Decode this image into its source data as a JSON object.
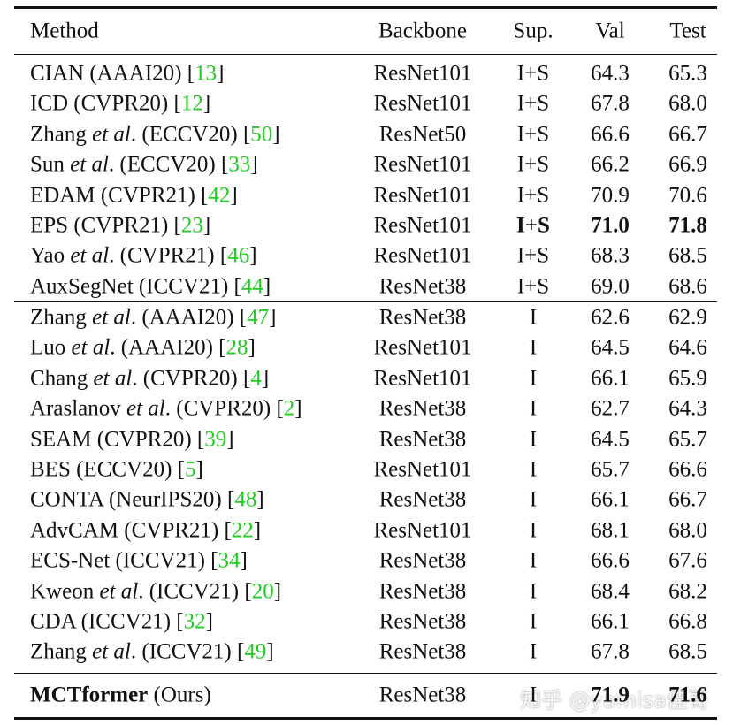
{
  "table": {
    "header": [
      "Method",
      "Backbone",
      "Sup.",
      "Val",
      "Test"
    ],
    "groups": [
      [
        {
          "method": [
            {
              "text": "CIAN (AAAI20) ["
            },
            {
              "text": "13",
              "style": "cite"
            },
            {
              "text": "]"
            }
          ],
          "backbone": "ResNet101",
          "sup": "I+S",
          "val": "64.3",
          "test": "65.3"
        },
        {
          "method": [
            {
              "text": "ICD (CVPR20) ["
            },
            {
              "text": "12",
              "style": "cite"
            },
            {
              "text": "]"
            }
          ],
          "backbone": "ResNet101",
          "sup": "I+S",
          "val": "67.8",
          "test": "68.0"
        },
        {
          "method": [
            {
              "text": "Zhang "
            },
            {
              "text": "et al",
              "style": "i"
            },
            {
              "text": ". (ECCV20) ["
            },
            {
              "text": "50",
              "style": "cite"
            },
            {
              "text": "]"
            }
          ],
          "backbone": "ResNet50",
          "sup": "I+S",
          "val": "66.6",
          "test": "66.7"
        },
        {
          "method": [
            {
              "text": "Sun "
            },
            {
              "text": "et al",
              "style": "i"
            },
            {
              "text": ". (ECCV20) ["
            },
            {
              "text": "33",
              "style": "cite"
            },
            {
              "text": "]"
            }
          ],
          "backbone": "ResNet101",
          "sup": "I+S",
          "val": "66.2",
          "test": "66.9"
        },
        {
          "method": [
            {
              "text": "EDAM (CVPR21) ["
            },
            {
              "text": "42",
              "style": "cite"
            },
            {
              "text": "]"
            }
          ],
          "backbone": "ResNet101",
          "sup": "I+S",
          "val": "70.9",
          "test": "70.6"
        },
        {
          "method": [
            {
              "text": "EPS (CVPR21) ["
            },
            {
              "text": "23",
              "style": "cite"
            },
            {
              "text": "]"
            }
          ],
          "backbone": "ResNet101",
          "sup": "I+S",
          "val": "71.0",
          "test": "71.8",
          "bold": [
            "sup",
            "val",
            "test"
          ]
        },
        {
          "method": [
            {
              "text": "Yao "
            },
            {
              "text": "et al",
              "style": "i"
            },
            {
              "text": ". (CVPR21) ["
            },
            {
              "text": "46",
              "style": "cite"
            },
            {
              "text": "]"
            }
          ],
          "backbone": "ResNet101",
          "sup": "I+S",
          "val": "68.3",
          "test": "68.5"
        },
        {
          "method": [
            {
              "text": "AuxSegNet (ICCV21) ["
            },
            {
              "text": "44",
              "style": "cite"
            },
            {
              "text": "]"
            }
          ],
          "backbone": "ResNet38",
          "sup": "I+S",
          "val": "69.0",
          "test": "68.6"
        }
      ],
      [
        {
          "method": [
            {
              "text": "Zhang "
            },
            {
              "text": "et al",
              "style": "i"
            },
            {
              "text": ". (AAAI20) ["
            },
            {
              "text": "47",
              "style": "cite"
            },
            {
              "text": "]"
            }
          ],
          "backbone": "ResNet38",
          "sup": "I",
          "val": "62.6",
          "test": "62.9"
        },
        {
          "method": [
            {
              "text": "Luo "
            },
            {
              "text": "et al",
              "style": "i"
            },
            {
              "text": ". (AAAI20) ["
            },
            {
              "text": "28",
              "style": "cite"
            },
            {
              "text": "]"
            }
          ],
          "backbone": "ResNet101",
          "sup": "I",
          "val": "64.5",
          "test": "64.6"
        },
        {
          "method": [
            {
              "text": "Chang "
            },
            {
              "text": "et al",
              "style": "i"
            },
            {
              "text": ". (CVPR20) ["
            },
            {
              "text": "4",
              "style": "cite"
            },
            {
              "text": "]"
            }
          ],
          "backbone": "ResNet101",
          "sup": "I",
          "val": "66.1",
          "test": "65.9"
        },
        {
          "method": [
            {
              "text": "Araslanov "
            },
            {
              "text": "et al",
              "style": "i"
            },
            {
              "text": ". (CVPR20) ["
            },
            {
              "text": "2",
              "style": "cite"
            },
            {
              "text": "]"
            }
          ],
          "backbone": "ResNet38",
          "sup": "I",
          "val": "62.7",
          "test": "64.3"
        },
        {
          "method": [
            {
              "text": "SEAM (CVPR20) ["
            },
            {
              "text": "39",
              "style": "cite"
            },
            {
              "text": "]"
            }
          ],
          "backbone": "ResNet38",
          "sup": "I",
          "val": "64.5",
          "test": "65.7"
        },
        {
          "method": [
            {
              "text": "BES (ECCV20) ["
            },
            {
              "text": "5",
              "style": "cite"
            },
            {
              "text": "]"
            }
          ],
          "backbone": "ResNet101",
          "sup": "I",
          "val": "65.7",
          "test": "66.6"
        },
        {
          "method": [
            {
              "text": "CONTA (NeurIPS20) ["
            },
            {
              "text": "48",
              "style": "cite"
            },
            {
              "text": "]"
            }
          ],
          "backbone": "ResNet38",
          "sup": "I",
          "val": "66.1",
          "test": "66.7"
        },
        {
          "method": [
            {
              "text": "AdvCAM (CVPR21) ["
            },
            {
              "text": "22",
              "style": "cite"
            },
            {
              "text": "]"
            }
          ],
          "backbone": "ResNet101",
          "sup": "I",
          "val": "68.1",
          "test": "68.0"
        },
        {
          "method": [
            {
              "text": "ECS-Net (ICCV21) ["
            },
            {
              "text": "34",
              "style": "cite"
            },
            {
              "text": "]"
            }
          ],
          "backbone": "ResNet38",
          "sup": "I",
          "val": "66.6",
          "test": "67.6"
        },
        {
          "method": [
            {
              "text": "Kweon "
            },
            {
              "text": "et al",
              "style": "i"
            },
            {
              "text": ". (ICCV21) ["
            },
            {
              "text": "20",
              "style": "cite"
            },
            {
              "text": "]"
            }
          ],
          "backbone": "ResNet38",
          "sup": "I",
          "val": "68.4",
          "test": "68.2"
        },
        {
          "method": [
            {
              "text": "CDA (ICCV21) ["
            },
            {
              "text": "32",
              "style": "cite"
            },
            {
              "text": "]"
            }
          ],
          "backbone": "ResNet38",
          "sup": "I",
          "val": "66.1",
          "test": "66.8"
        },
        {
          "method": [
            {
              "text": "Zhang "
            },
            {
              "text": "et al",
              "style": "i"
            },
            {
              "text": ". (ICCV21) ["
            },
            {
              "text": "49",
              "style": "cite"
            },
            {
              "text": "]"
            }
          ],
          "backbone": "ResNet38",
          "sup": "I",
          "val": "67.8",
          "test": "68.5"
        }
      ],
      [
        {
          "method": [
            {
              "text": "MCTformer",
              "style": "b"
            },
            {
              "text": " (Ours)"
            }
          ],
          "backbone": "ResNet38",
          "sup": "I",
          "val": "71.9",
          "test": "71.6",
          "bold": [
            "val",
            "test"
          ]
        }
      ]
    ]
  },
  "watermark": "知乎 @yamisa佳哥"
}
